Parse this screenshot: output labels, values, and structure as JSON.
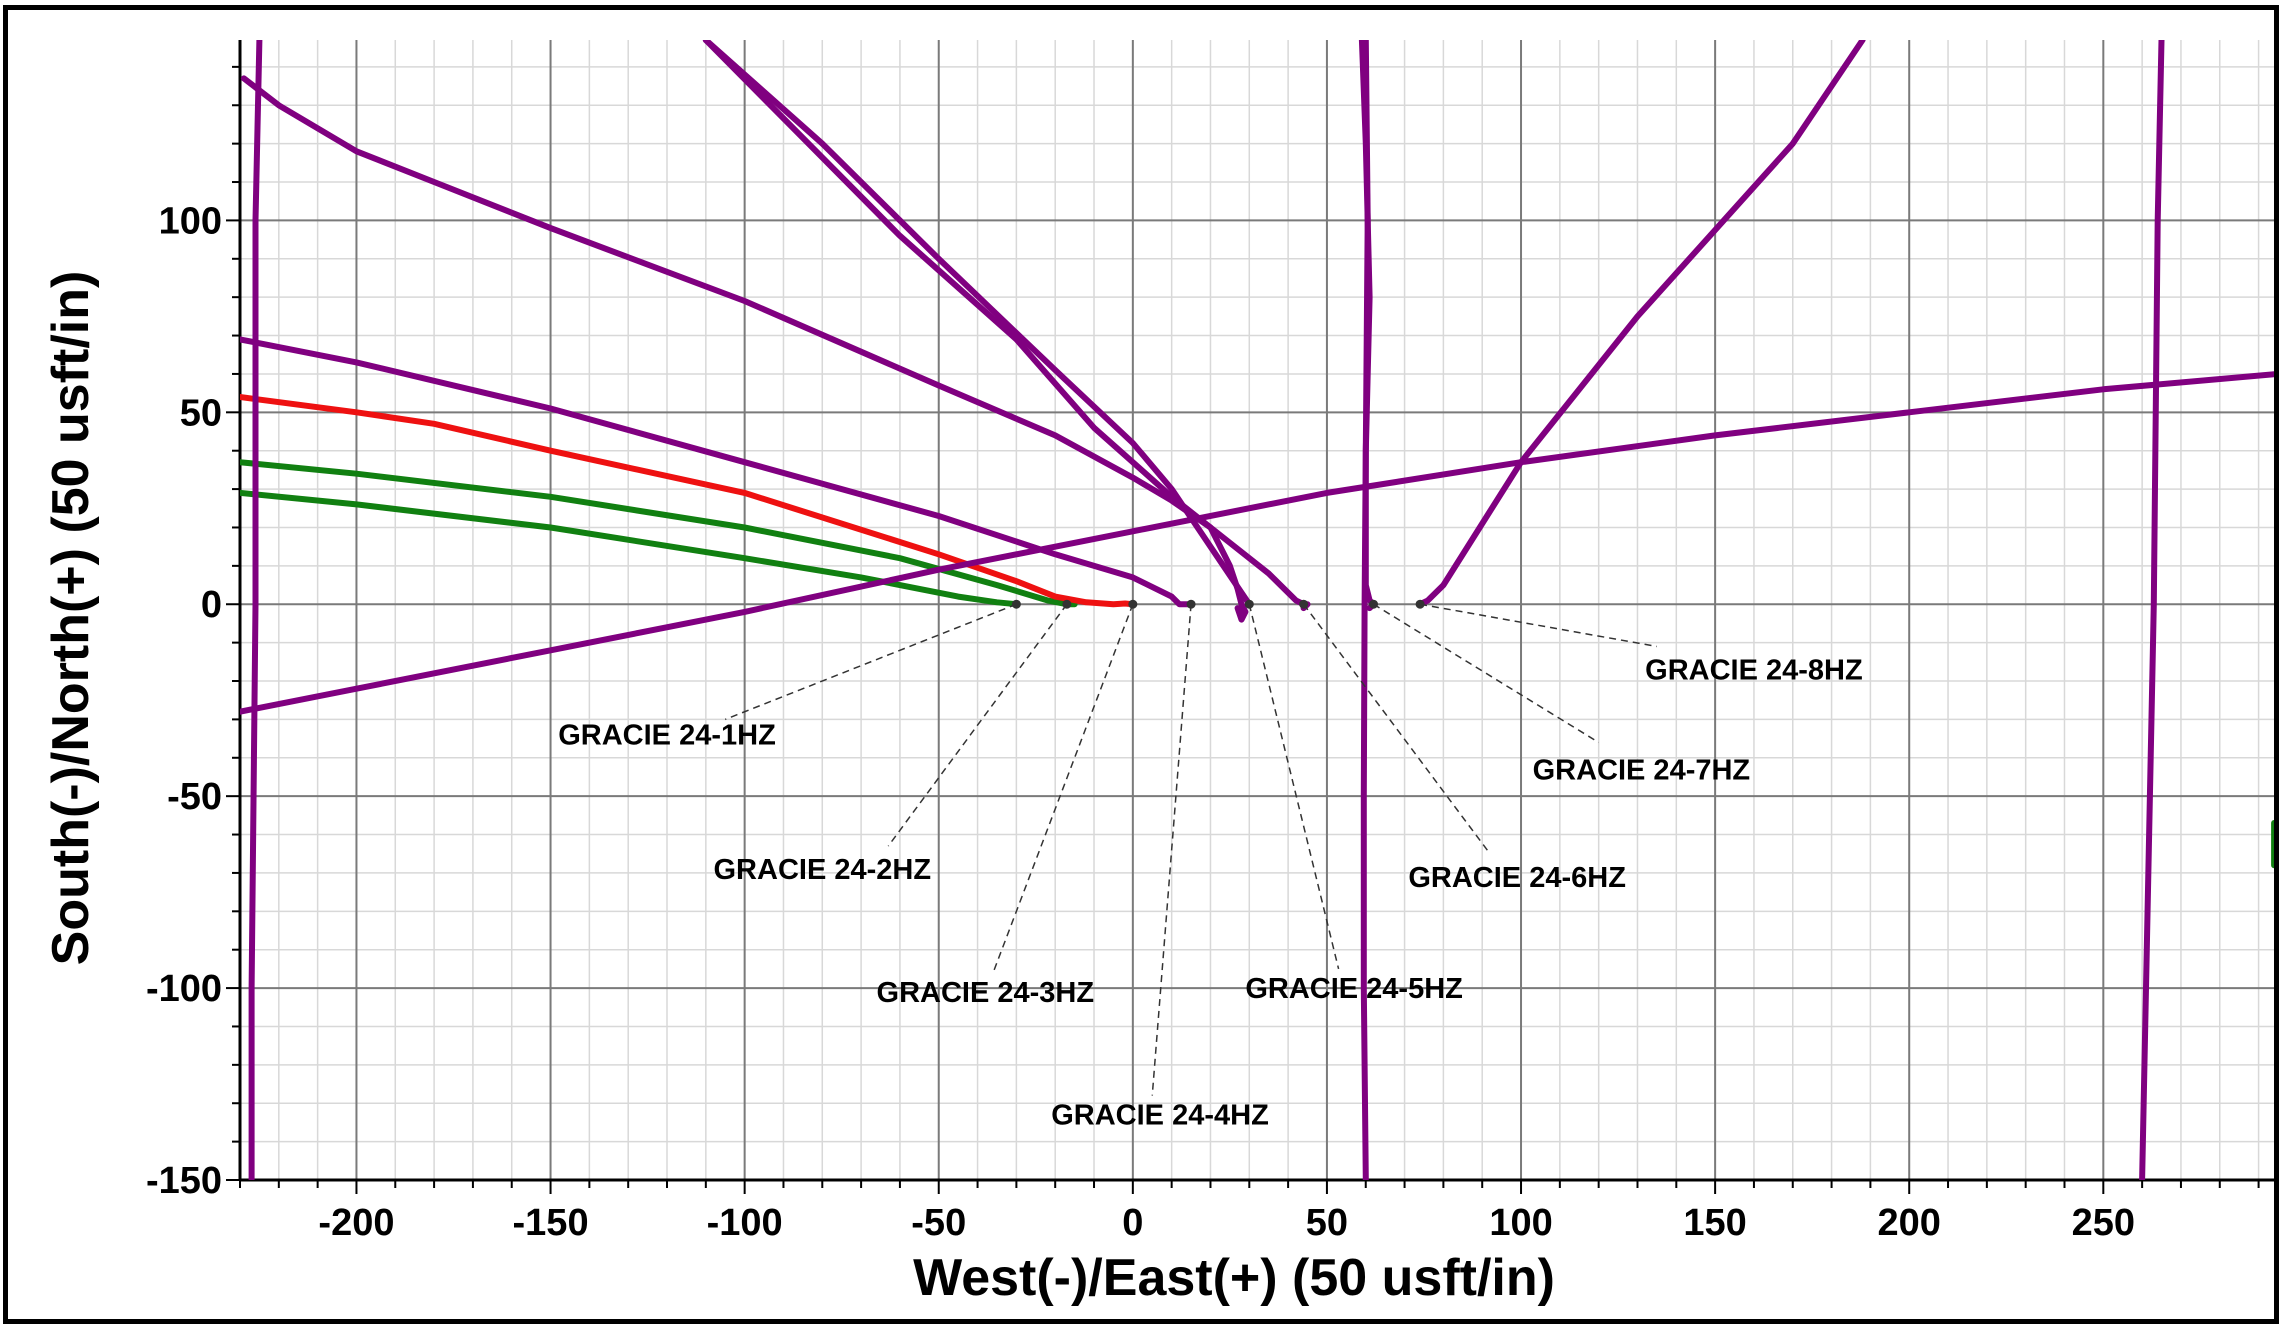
{
  "chart_data": {
    "type": "line",
    "xlabel": "West(-)/East(+) (50 usft/in)",
    "ylabel": "South(-)/North(+) (50 usft/in)",
    "xlim": [
      -230,
      295
    ],
    "ylim": [
      -150,
      147
    ],
    "x_ticks": [
      -200,
      -150,
      -100,
      -50,
      0,
      50,
      100,
      150,
      200,
      250
    ],
    "y_ticks": [
      100,
      50,
      0,
      -50,
      -100,
      -150
    ],
    "grid": true,
    "colors": {
      "green": "#118011",
      "red": "#ee1111",
      "purple": "#800080",
      "grid_minor": "#d8d8d8",
      "grid_major": "#7a7a7a"
    },
    "series": [
      {
        "color": "#118011",
        "points": [
          [
            -230,
            29
          ],
          [
            -200,
            26
          ],
          [
            -150,
            20
          ],
          [
            -100,
            12
          ],
          [
            -70,
            7
          ],
          [
            -45,
            2
          ],
          [
            -35,
            0.5
          ],
          [
            -30,
            0
          ]
        ]
      },
      {
        "color": "#118011",
        "points": [
          [
            -230,
            37
          ],
          [
            -200,
            34
          ],
          [
            -150,
            28
          ],
          [
            -100,
            20
          ],
          [
            -60,
            12
          ],
          [
            -35,
            5
          ],
          [
            -22,
            1
          ],
          [
            -17,
            0
          ],
          [
            -15,
            0
          ]
        ]
      },
      {
        "color": "#ee1111",
        "points": [
          [
            -230,
            54
          ],
          [
            -200,
            50
          ],
          [
            -180,
            47
          ],
          [
            -150,
            40
          ],
          [
            -100,
            29
          ],
          [
            -50,
            13
          ],
          [
            -30,
            6
          ],
          [
            -20,
            2
          ],
          [
            -12,
            0.5
          ],
          [
            -5,
            0
          ],
          [
            -2,
            0.2
          ],
          [
            0,
            0
          ]
        ]
      },
      {
        "color": "#800080",
        "points": [
          [
            -229,
            137
          ],
          [
            -220,
            130
          ],
          [
            -200,
            118
          ],
          [
            -180,
            110
          ],
          [
            -150,
            98
          ],
          [
            -100,
            79
          ],
          [
            -50,
            57
          ],
          [
            -20,
            44
          ],
          [
            0,
            33
          ],
          [
            10,
            27
          ],
          [
            20,
            20
          ],
          [
            25,
            10
          ],
          [
            27,
            4
          ],
          [
            28,
            0
          ],
          [
            29,
            -2
          ],
          [
            28,
            -4
          ],
          [
            27,
            -1
          ]
        ]
      },
      {
        "color": "#800080",
        "points": [
          [
            -230,
            69
          ],
          [
            -200,
            63
          ],
          [
            -150,
            51
          ],
          [
            -100,
            37
          ],
          [
            -50,
            23
          ],
          [
            -20,
            13
          ],
          [
            0,
            7
          ],
          [
            10,
            2
          ],
          [
            12,
            0
          ],
          [
            14,
            0
          ],
          [
            15,
            0
          ]
        ]
      },
      {
        "color": "#800080",
        "points": [
          [
            -110,
            147
          ],
          [
            -80,
            120
          ],
          [
            -50,
            90
          ],
          [
            -20,
            61
          ],
          [
            0,
            42
          ],
          [
            10,
            30
          ],
          [
            20,
            15
          ],
          [
            28,
            3
          ],
          [
            30,
            0
          ]
        ]
      },
      {
        "color": "#800080",
        "points": [
          [
            -110,
            147
          ],
          [
            -60,
            96
          ],
          [
            -30,
            69
          ],
          [
            -10,
            46
          ],
          [
            10,
            28
          ],
          [
            25,
            16
          ],
          [
            35,
            8
          ],
          [
            42,
            1
          ],
          [
            44,
            0
          ],
          [
            45,
            0
          ],
          [
            44,
            -1
          ]
        ]
      },
      {
        "color": "#800080",
        "points": [
          [
            -230,
            -28
          ],
          [
            -200,
            -22
          ],
          [
            -150,
            -12
          ],
          [
            -100,
            -2
          ],
          [
            -50,
            9
          ],
          [
            0,
            19
          ],
          [
            50,
            29
          ],
          [
            100,
            37
          ],
          [
            150,
            44
          ],
          [
            200,
            50
          ],
          [
            250,
            56
          ],
          [
            295,
            60
          ]
        ]
      },
      {
        "color": "#800080",
        "points": [
          [
            59,
            147
          ],
          [
            60,
            120
          ],
          [
            61,
            80
          ],
          [
            60,
            40
          ],
          [
            60,
            20
          ],
          [
            60,
            5
          ],
          [
            61,
            1
          ],
          [
            62,
            0
          ],
          [
            61,
            -1
          ]
        ]
      },
      {
        "color": "#800080",
        "points": [
          [
            60,
            -150
          ],
          [
            59.5,
            -100
          ],
          [
            59.5,
            -50
          ],
          [
            59.7,
            0
          ],
          [
            60,
            40
          ],
          [
            60.5,
            100
          ],
          [
            60,
            147
          ]
        ]
      },
      {
        "color": "#800080",
        "points": [
          [
            74,
            0
          ],
          [
            76,
            1
          ],
          [
            80,
            5
          ],
          [
            90,
            21
          ],
          [
            100,
            37
          ],
          [
            130,
            75
          ],
          [
            170,
            120
          ],
          [
            188,
            147
          ]
        ]
      },
      {
        "color": "#800080",
        "points": [
          [
            -225,
            147
          ],
          [
            -226,
            100
          ],
          [
            -226,
            0
          ],
          [
            -227,
            -100
          ],
          [
            -227,
            -150
          ]
        ]
      },
      {
        "color": "#800080",
        "points": [
          [
            265,
            147
          ],
          [
            264,
            100
          ],
          [
            263,
            0
          ],
          [
            261,
            -100
          ],
          [
            260,
            -150
          ]
        ]
      },
      {
        "color": "#118011",
        "points": [
          [
            294,
            -57
          ],
          [
            294,
            -62
          ],
          [
            294,
            -68
          ]
        ]
      }
    ],
    "annotations": [
      {
        "text": "GRACIE 24-1HZ",
        "anchor": [
          -30,
          0
        ],
        "tail": [
          -105,
          -30
        ],
        "label_at": [
          -120,
          -34
        ],
        "align": "middle"
      },
      {
        "text": "GRACIE 24-2HZ",
        "anchor": [
          -17,
          0
        ],
        "tail": [
          -63,
          -63
        ],
        "label_at": [
          -80,
          -69
        ],
        "align": "middle"
      },
      {
        "text": "GRACIE 24-3HZ",
        "anchor": [
          0,
          0
        ],
        "tail": [
          -36,
          -96
        ],
        "label_at": [
          -38,
          -101
        ],
        "align": "middle"
      },
      {
        "text": "GRACIE 24-4HZ",
        "anchor": [
          15,
          0
        ],
        "tail": [
          5,
          -128
        ],
        "label_at": [
          7,
          -133
        ],
        "align": "middle"
      },
      {
        "text": "GRACIE 24-5HZ",
        "anchor": [
          30,
          0
        ],
        "tail": [
          53,
          -95
        ],
        "label_at": [
          57,
          -100
        ],
        "align": "middle"
      },
      {
        "text": "GRACIE 24-6HZ",
        "anchor": [
          44,
          0
        ],
        "tail": [
          92,
          -65
        ],
        "label_at": [
          99,
          -71
        ],
        "align": "middle"
      },
      {
        "text": "GRACIE 24-7HZ",
        "anchor": [
          62,
          0
        ],
        "tail": [
          120,
          -36
        ],
        "label_at": [
          131,
          -43
        ],
        "align": "middle"
      },
      {
        "text": "GRACIE 24-8HZ",
        "anchor": [
          74,
          0
        ],
        "tail": [
          135,
          -11
        ],
        "label_at": [
          160,
          -17
        ],
        "align": "middle"
      }
    ]
  }
}
